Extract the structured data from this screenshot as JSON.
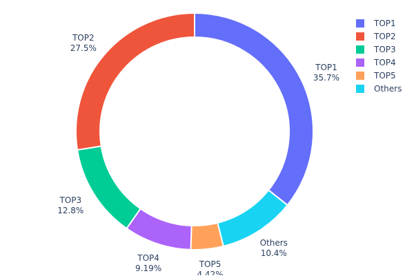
{
  "chart_data": {
    "type": "pie",
    "hole": true,
    "labels": [
      "TOP1",
      "TOP2",
      "TOP3",
      "TOP4",
      "TOP5",
      "Others"
    ],
    "values": [
      35.7,
      27.5,
      12.8,
      9.19,
      4.42,
      10.4
    ],
    "value_labels": [
      "35.7%",
      "27.5%",
      "12.8%",
      "9.19%",
      "4.42%",
      "10.4%"
    ],
    "colors": [
      "#636efa",
      "#ef553b",
      "#00cc96",
      "#ab63fa",
      "#ffa15a",
      "#19d3f3"
    ],
    "clockwise_order_from_top": [
      "TOP1",
      "Others",
      "TOP5",
      "TOP4",
      "TOP3",
      "TOP2"
    ],
    "legend_position": "top-right"
  }
}
